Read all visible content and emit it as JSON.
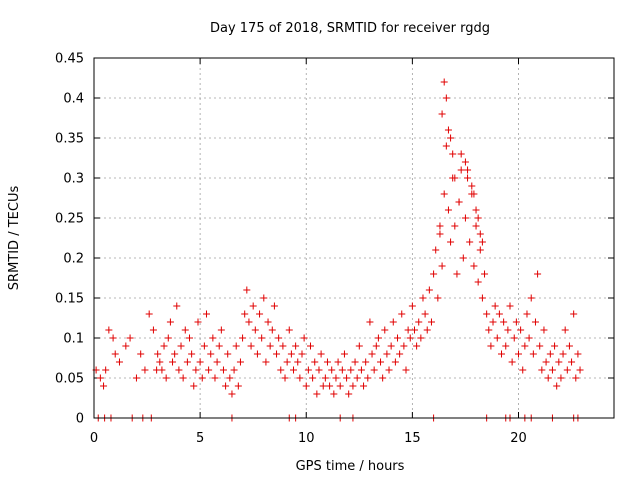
{
  "chart_data": {
    "type": "scatter",
    "title": "Day 175 of 2018, SRMTID for receiver rgdg",
    "xlabel": "GPS time / hours",
    "ylabel": "SRMTID / TECUs",
    "xlim": [
      0,
      24.5
    ],
    "ylim": [
      0,
      0.45
    ],
    "grid": true,
    "x_ticks": [
      0,
      5,
      10,
      15,
      20
    ],
    "x_tick_labels": [
      "0",
      "5",
      "10",
      "15",
      "20"
    ],
    "y_ticks": [
      0,
      0.05,
      0.1,
      0.15,
      0.2,
      0.25,
      0.3,
      0.35,
      0.4,
      0.45
    ],
    "y_tick_labels": [
      "0",
      "0.05",
      "0.1",
      "0.15",
      "0.2",
      "0.25",
      "0.3",
      "0.35",
      "0.4",
      "0.45"
    ],
    "marker": "+",
    "marker_color": "#e00000",
    "series": [
      {
        "name": "SRMTID",
        "x": [
          0.1,
          0.3,
          0.45,
          0.55,
          0.7,
          0.9,
          1.0,
          1.2,
          1.5,
          1.7,
          2.0,
          2.2,
          2.4,
          2.6,
          2.8,
          2.95,
          3.0,
          3.1,
          3.2,
          3.3,
          3.4,
          3.5,
          3.6,
          3.7,
          3.8,
          3.9,
          4.0,
          4.1,
          4.2,
          4.3,
          4.4,
          4.5,
          4.6,
          4.7,
          4.8,
          4.9,
          5.0,
          5.1,
          5.2,
          5.3,
          5.4,
          5.5,
          5.6,
          5.7,
          5.8,
          5.9,
          6.0,
          6.1,
          6.2,
          6.3,
          6.4,
          6.5,
          6.6,
          6.7,
          6.8,
          6.9,
          7.0,
          7.1,
          7.2,
          7.3,
          7.4,
          7.5,
          7.6,
          7.7,
          7.8,
          7.9,
          8.0,
          8.1,
          8.2,
          8.3,
          8.4,
          8.5,
          8.6,
          8.7,
          8.8,
          8.9,
          9.0,
          9.1,
          9.2,
          9.3,
          9.4,
          9.5,
          9.6,
          9.7,
          9.8,
          9.9,
          10.0,
          10.1,
          10.2,
          10.3,
          10.4,
          10.5,
          10.6,
          10.7,
          10.8,
          10.9,
          11.0,
          11.1,
          11.2,
          11.3,
          11.4,
          11.5,
          11.6,
          11.7,
          11.8,
          11.9,
          12.0,
          12.1,
          12.2,
          12.3,
          12.4,
          12.5,
          12.6,
          12.7,
          12.8,
          12.9,
          13.0,
          13.1,
          13.2,
          13.3,
          13.4,
          13.5,
          13.6,
          13.7,
          13.8,
          13.9,
          14.0,
          14.1,
          14.2,
          14.3,
          14.4,
          14.5,
          14.6,
          14.7,
          14.8,
          14.9,
          15.0,
          15.1,
          15.2,
          15.3,
          15.4,
          15.5,
          15.6,
          15.7,
          15.8,
          15.9,
          16.0,
          16.1,
          16.2,
          16.3,
          16.4,
          16.5,
          16.6,
          16.7,
          16.8,
          16.9,
          17.0,
          17.1,
          17.2,
          17.3,
          17.4,
          17.5,
          17.6,
          17.7,
          17.8,
          17.9,
          18.0,
          18.1,
          18.2,
          18.3,
          18.4,
          18.5,
          18.6,
          18.7,
          18.8,
          18.9,
          19.0,
          19.1,
          19.2,
          19.3,
          19.4,
          19.5,
          19.6,
          19.7,
          19.8,
          19.9,
          20.0,
          20.1,
          20.2,
          20.3,
          20.4,
          20.5,
          20.6,
          20.7,
          20.8,
          20.9,
          21.0,
          21.1,
          21.2,
          21.3,
          21.4,
          21.5,
          21.6,
          21.7,
          21.8,
          21.9,
          22.0,
          22.1,
          22.2,
          22.3,
          22.4,
          22.5,
          22.6,
          22.7,
          22.8,
          22.9,
          16.5,
          16.6,
          16.8,
          17.0,
          17.2,
          17.5,
          17.8,
          18.0,
          18.2,
          16.4,
          16.7,
          17.3,
          17.9,
          18.1,
          16.3,
          16.9,
          17.6,
          18.3,
          0.2,
          0.5,
          0.8,
          1.8,
          2.3,
          2.7,
          6.5,
          9.2,
          9.5,
          11.6,
          12.2,
          16.0,
          18.5,
          19.4,
          19.6,
          20.3,
          20.6,
          21.6,
          22.6,
          22.8
        ],
        "y": [
          0.06,
          0.05,
          0.04,
          0.06,
          0.11,
          0.1,
          0.08,
          0.07,
          0.09,
          0.1,
          0.05,
          0.08,
          0.06,
          0.13,
          0.11,
          0.06,
          0.08,
          0.07,
          0.06,
          0.09,
          0.05,
          0.1,
          0.12,
          0.07,
          0.08,
          0.14,
          0.06,
          0.09,
          0.05,
          0.11,
          0.07,
          0.1,
          0.08,
          0.04,
          0.06,
          0.12,
          0.07,
          0.05,
          0.09,
          0.13,
          0.06,
          0.08,
          0.1,
          0.05,
          0.07,
          0.09,
          0.11,
          0.06,
          0.04,
          0.08,
          0.05,
          0.03,
          0.06,
          0.09,
          0.04,
          0.07,
          0.1,
          0.13,
          0.16,
          0.12,
          0.09,
          0.14,
          0.11,
          0.08,
          0.13,
          0.1,
          0.15,
          0.07,
          0.12,
          0.09,
          0.11,
          0.14,
          0.08,
          0.1,
          0.06,
          0.09,
          0.05,
          0.07,
          0.11,
          0.08,
          0.06,
          0.09,
          0.07,
          0.05,
          0.08,
          0.1,
          0.04,
          0.06,
          0.09,
          0.05,
          0.07,
          0.03,
          0.06,
          0.08,
          0.04,
          0.05,
          0.07,
          0.04,
          0.06,
          0.03,
          0.05,
          0.07,
          0.04,
          0.06,
          0.08,
          0.05,
          0.03,
          0.06,
          0.04,
          0.07,
          0.05,
          0.09,
          0.06,
          0.04,
          0.07,
          0.05,
          0.12,
          0.08,
          0.06,
          0.09,
          0.1,
          0.07,
          0.05,
          0.11,
          0.08,
          0.06,
          0.09,
          0.12,
          0.07,
          0.1,
          0.08,
          0.13,
          0.09,
          0.06,
          0.11,
          0.1,
          0.14,
          0.11,
          0.09,
          0.12,
          0.1,
          0.15,
          0.13,
          0.11,
          0.16,
          0.12,
          0.18,
          0.21,
          0.15,
          0.23,
          0.19,
          0.28,
          0.34,
          0.26,
          0.22,
          0.3,
          0.24,
          0.18,
          0.27,
          0.33,
          0.2,
          0.25,
          0.31,
          0.22,
          0.28,
          0.19,
          0.24,
          0.17,
          0.21,
          0.15,
          0.18,
          0.13,
          0.11,
          0.09,
          0.12,
          0.14,
          0.1,
          0.13,
          0.08,
          0.12,
          0.09,
          0.11,
          0.14,
          0.07,
          0.1,
          0.12,
          0.08,
          0.11,
          0.06,
          0.09,
          0.13,
          0.1,
          0.15,
          0.08,
          0.12,
          0.18,
          0.09,
          0.06,
          0.11,
          0.07,
          0.05,
          0.08,
          0.06,
          0.09,
          0.04,
          0.07,
          0.05,
          0.08,
          0.11,
          0.06,
          0.09,
          0.07,
          0.13,
          0.05,
          0.08,
          0.06,
          0.42,
          0.4,
          0.35,
          0.3,
          0.27,
          0.32,
          0.29,
          0.26,
          0.23,
          0.38,
          0.36,
          0.31,
          0.28,
          0.25,
          0.24,
          0.33,
          0.3,
          0.22,
          0.0,
          0.0,
          0.0,
          0.0,
          0.0,
          0.0,
          0.0,
          0.0,
          0.0,
          0.0,
          0.0,
          0.0,
          0.0,
          0.0,
          0.0,
          0.0,
          0.0,
          0.0,
          0.0,
          0.0
        ]
      }
    ]
  }
}
